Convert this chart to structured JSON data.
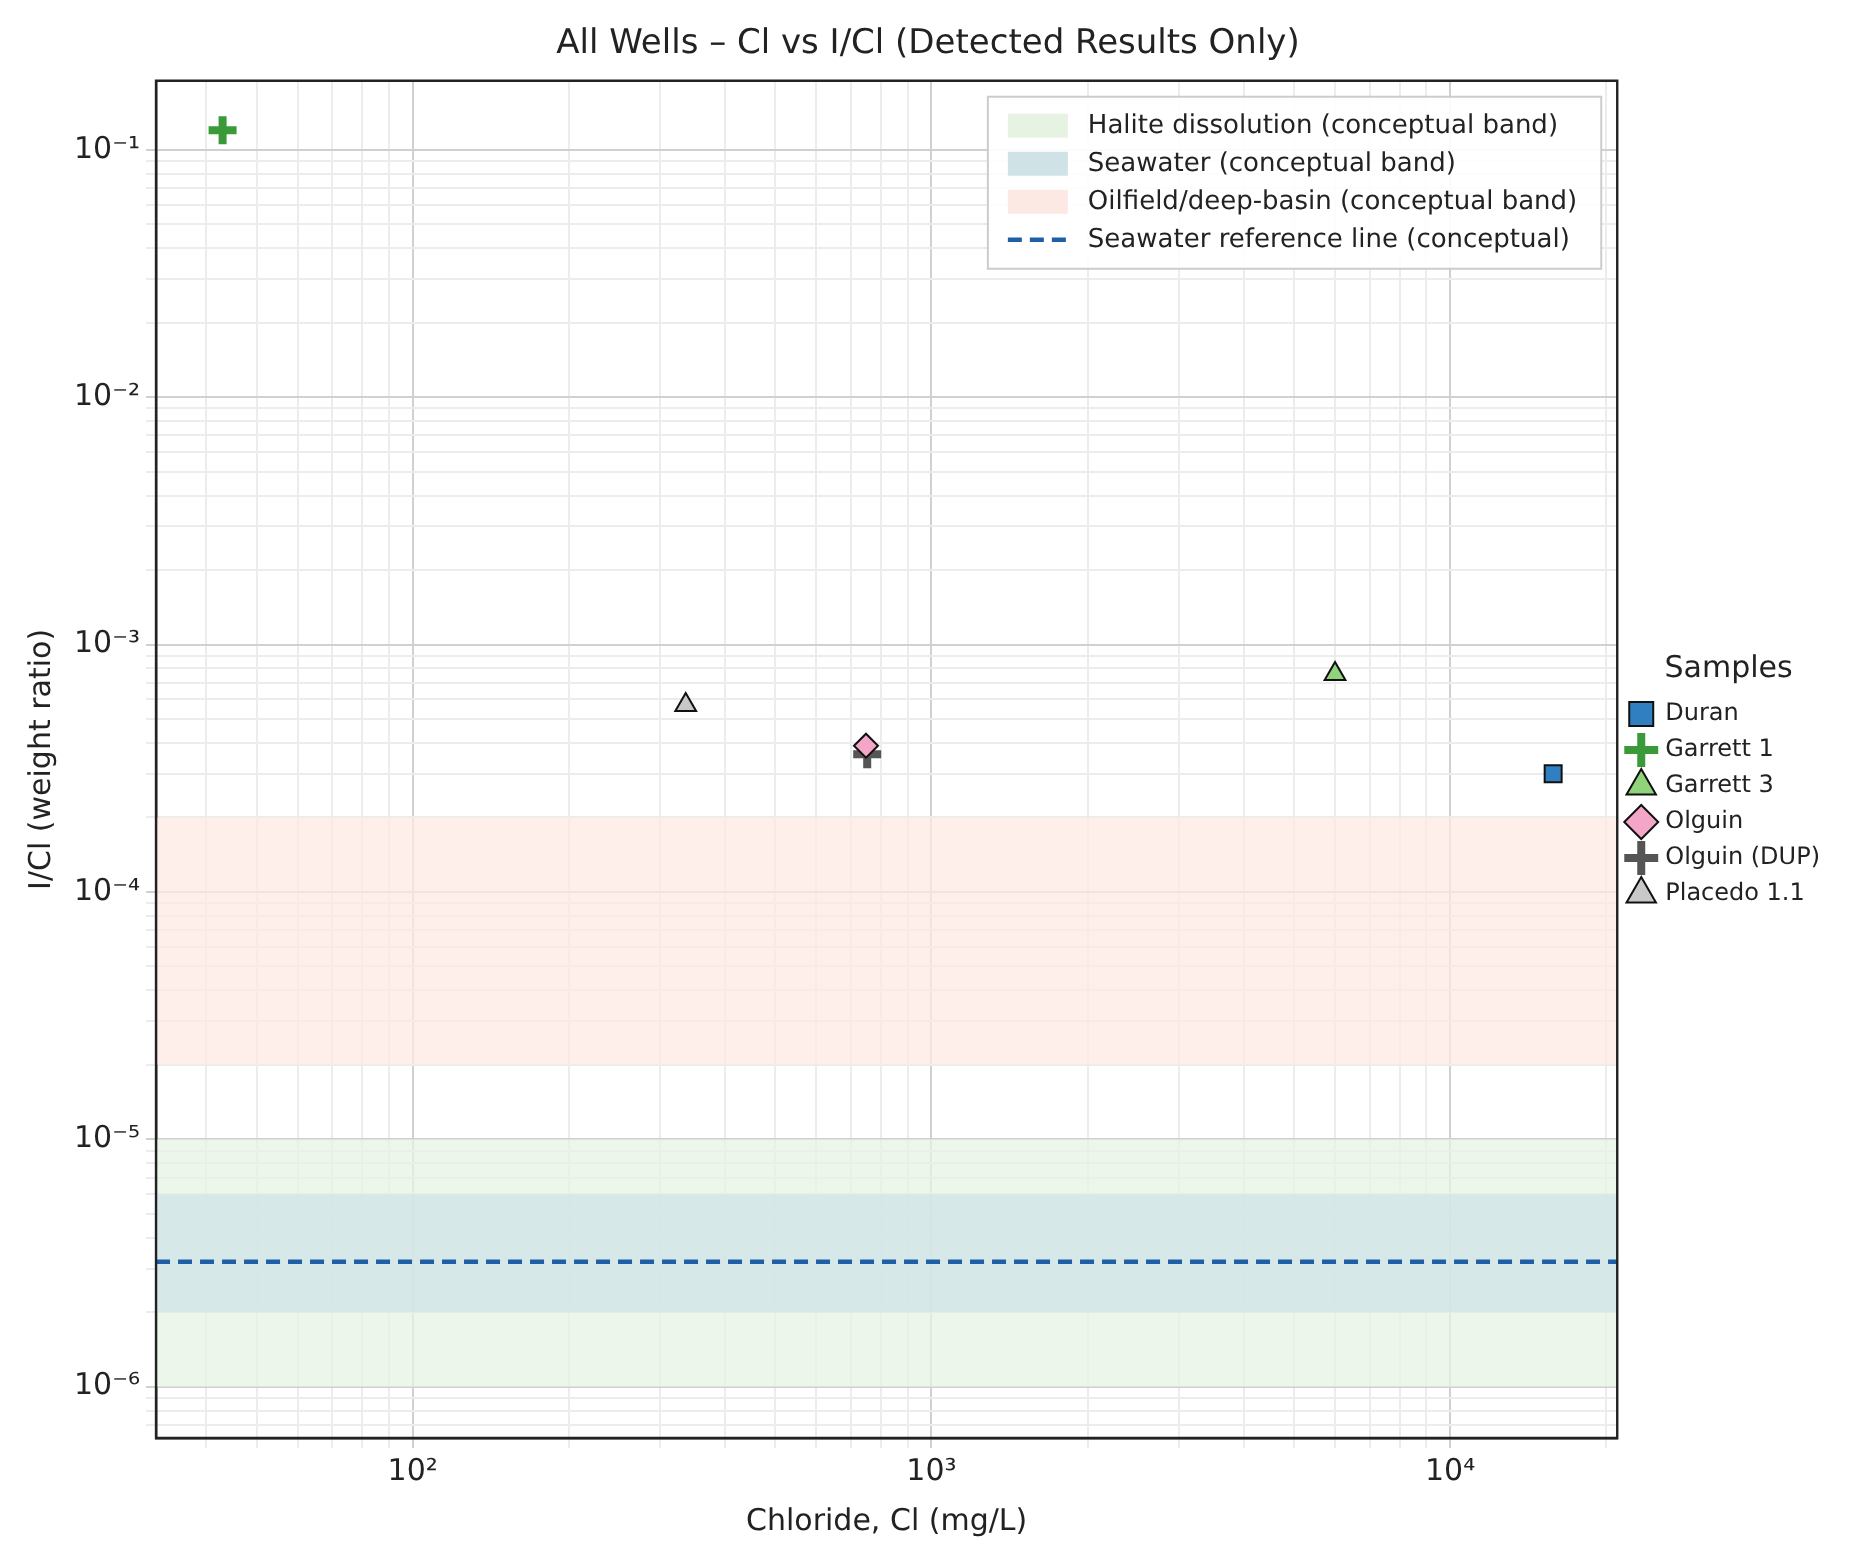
{
  "chart_data": {
    "type": "scatter",
    "title": "All Wells – Cl vs I/Cl (Detected Results Only)",
    "xlabel": "Chloride, Cl (mg/L)",
    "ylabel": "I/Cl (weight ratio)",
    "legend_title": "Samples",
    "log": "xy",
    "grid": true,
    "legend": "right",
    "xlim": [
      32,
      21000
    ],
    "ylim": [
      6.2e-07,
      0.19
    ],
    "xticks": [
      {
        "value": 40,
        "label": null
      },
      {
        "value": 50,
        "label": null
      },
      {
        "value": 60,
        "label": null
      },
      {
        "value": 70,
        "label": null
      },
      {
        "value": 80,
        "label": null
      },
      {
        "value": 90,
        "label": null
      },
      {
        "value": 100,
        "label": "10²"
      },
      {
        "value": 200,
        "label": null
      },
      {
        "value": 300,
        "label": null
      },
      {
        "value": 400,
        "label": null
      },
      {
        "value": 500,
        "label": null
      },
      {
        "value": 600,
        "label": null
      },
      {
        "value": 700,
        "label": null
      },
      {
        "value": 800,
        "label": null
      },
      {
        "value": 900,
        "label": null
      },
      {
        "value": 1000,
        "label": "10³"
      },
      {
        "value": 2000,
        "label": null
      },
      {
        "value": 3000,
        "label": null
      },
      {
        "value": 4000,
        "label": null
      },
      {
        "value": 5000,
        "label": null
      },
      {
        "value": 6000,
        "label": null
      },
      {
        "value": 7000,
        "label": null
      },
      {
        "value": 8000,
        "label": null
      },
      {
        "value": 9000,
        "label": null
      },
      {
        "value": 10000,
        "label": "10⁴"
      },
      {
        "value": 20000,
        "label": null
      }
    ],
    "yticks": [
      {
        "value": 7e-07,
        "label": null
      },
      {
        "value": 8e-07,
        "label": null
      },
      {
        "value": 9e-07,
        "label": null
      },
      {
        "value": 1e-06,
        "label": "10⁻⁶"
      },
      {
        "value": 2e-06,
        "label": null
      },
      {
        "value": 3e-06,
        "label": null
      },
      {
        "value": 4e-06,
        "label": null
      },
      {
        "value": 5e-06,
        "label": null
      },
      {
        "value": 6e-06,
        "label": null
      },
      {
        "value": 7e-06,
        "label": null
      },
      {
        "value": 8e-06,
        "label": null
      },
      {
        "value": 9e-06,
        "label": null
      },
      {
        "value": 1e-05,
        "label": "10⁻⁵"
      },
      {
        "value": 2e-05,
        "label": null
      },
      {
        "value": 3e-05,
        "label": null
      },
      {
        "value": 4e-05,
        "label": null
      },
      {
        "value": 5e-05,
        "label": null
      },
      {
        "value": 6e-05,
        "label": null
      },
      {
        "value": 7e-05,
        "label": null
      },
      {
        "value": 8e-05,
        "label": null
      },
      {
        "value": 9e-05,
        "label": null
      },
      {
        "value": 0.0001,
        "label": "10⁻⁴"
      },
      {
        "value": 0.0002,
        "label": null
      },
      {
        "value": 0.0003,
        "label": null
      },
      {
        "value": 0.0004,
        "label": null
      },
      {
        "value": 0.0005,
        "label": null
      },
      {
        "value": 0.0006,
        "label": null
      },
      {
        "value": 0.0007,
        "label": null
      },
      {
        "value": 0.0008,
        "label": null
      },
      {
        "value": 0.0009,
        "label": null
      },
      {
        "value": 0.001,
        "label": "10⁻³"
      },
      {
        "value": 0.002,
        "label": null
      },
      {
        "value": 0.003,
        "label": null
      },
      {
        "value": 0.004,
        "label": null
      },
      {
        "value": 0.005,
        "label": null
      },
      {
        "value": 0.006,
        "label": null
      },
      {
        "value": 0.007,
        "label": null
      },
      {
        "value": 0.008,
        "label": null
      },
      {
        "value": 0.009,
        "label": null
      },
      {
        "value": 0.01,
        "label": "10⁻²"
      },
      {
        "value": 0.02,
        "label": null
      },
      {
        "value": 0.03,
        "label": null
      },
      {
        "value": 0.04,
        "label": null
      },
      {
        "value": 0.05,
        "label": null
      },
      {
        "value": 0.06,
        "label": null
      },
      {
        "value": 0.07,
        "label": null
      },
      {
        "value": 0.08,
        "label": null
      },
      {
        "value": 0.09,
        "label": null
      },
      {
        "value": 0.1,
        "label": "10⁻¹"
      }
    ],
    "bands": [
      {
        "axis": "y",
        "from": 1e-06,
        "to": 1e-05,
        "label": "Halite dissolution (conceptual band)",
        "color": "#e6f3e3"
      },
      {
        "axis": "y",
        "from": 2e-06,
        "to": 6e-06,
        "label": "Seawater (conceptual band)",
        "color": "#cfe3e6"
      },
      {
        "axis": "y",
        "from": 2e-05,
        "to": 0.0002,
        "label": "Oilfield/deep-basin (conceptual band)",
        "color": "#fde9e4"
      }
    ],
    "ref_lines": [
      {
        "axis": "y",
        "value": 3.2e-06,
        "label": "Seawater reference line (conceptual)",
        "color": "#1f5fa8",
        "line_style": "dashed"
      }
    ],
    "series": [
      {
        "name": "Duran",
        "color": "#2f7fc1",
        "marker": "square",
        "x": [
          15800
        ],
        "values": [
          0.0003
        ]
      },
      {
        "name": "Garrett 1",
        "color": "#3a9a3a",
        "marker": "cross",
        "x": [
          43
        ],
        "values": [
          0.12
        ]
      },
      {
        "name": "Garrett 3",
        "color": "#90d37a",
        "marker": "triangle",
        "x": [
          6000
        ],
        "values": [
          0.00076
        ]
      },
      {
        "name": "Olguin",
        "color": "#f4a6c8",
        "marker": "diamond",
        "x": [
          748
        ],
        "values": [
          0.00039
        ]
      },
      {
        "name": "Olguin (DUP)",
        "color": "#555555",
        "marker": "cross",
        "x": [
          752
        ],
        "values": [
          0.00036
        ]
      },
      {
        "name": "Placedo 1.1",
        "color": "#c8c8c8",
        "marker": "triangle",
        "x": [
          336
        ],
        "values": [
          0.00057
        ]
      }
    ]
  }
}
